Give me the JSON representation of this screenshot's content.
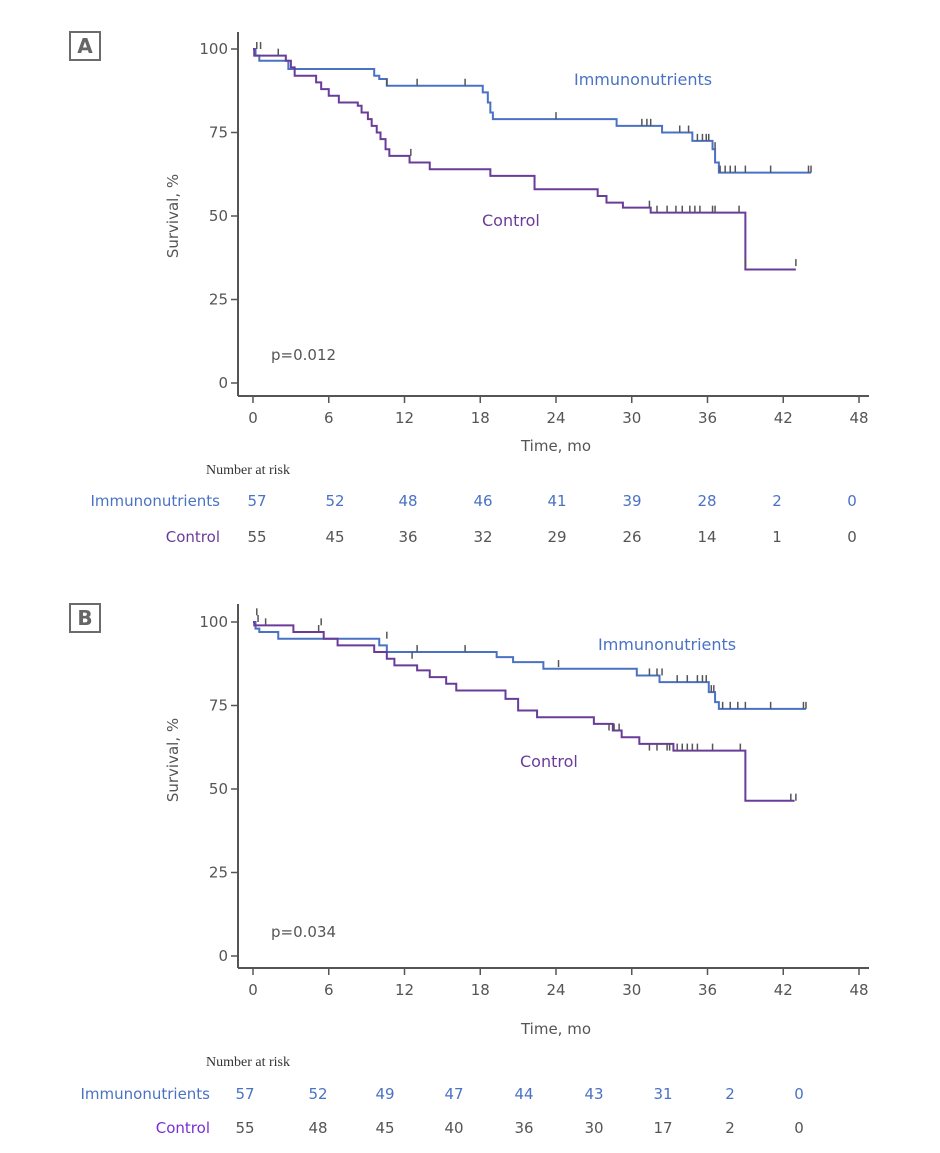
{
  "colors": {
    "immunonutrients": "#4a72c4",
    "control": "#6a3c9a",
    "axis": "#555555",
    "risk_imm_text": "#4a72c4",
    "risk_ctrl_label_a": "#6a3c9a",
    "risk_ctrl_label_b": "#7a2fd0",
    "risk_ctrl_values": "#555555"
  },
  "chart_data": [
    {
      "panel": "A",
      "type": "line",
      "title": "",
      "xlabel": "Time, mo",
      "ylabel": "Survival, %",
      "xlim": [
        0,
        48
      ],
      "ylim": [
        0,
        100
      ],
      "xticks": [
        0,
        6,
        12,
        18,
        24,
        30,
        36,
        42,
        48
      ],
      "yticks": [
        0,
        25,
        50,
        75,
        100
      ],
      "grid": false,
      "annotation": "p=0.012",
      "series": [
        {
          "name": "Immunonutrients",
          "label_position": "upper-right",
          "steps": [
            [
              0,
              100
            ],
            [
              0.2,
              98
            ],
            [
              0.5,
              96.5
            ],
            [
              2.8,
              94
            ],
            [
              9.6,
              92
            ],
            [
              10.0,
              91
            ],
            [
              10.6,
              89
            ],
            [
              18.2,
              87
            ],
            [
              18.6,
              84
            ],
            [
              18.8,
              81
            ],
            [
              19.0,
              79
            ],
            [
              28.8,
              77
            ],
            [
              32.4,
              75
            ],
            [
              34.8,
              72.5
            ],
            [
              36.4,
              70
            ],
            [
              36.6,
              66
            ],
            [
              36.9,
              63
            ],
            [
              44.2,
              63
            ]
          ],
          "censored": [
            [
              0.3,
              100
            ],
            [
              10.6,
              89
            ],
            [
              13.0,
              89
            ],
            [
              16.8,
              89
            ],
            [
              24,
              79
            ],
            [
              30.8,
              77
            ],
            [
              31.2,
              77
            ],
            [
              31.5,
              77
            ],
            [
              33.8,
              75
            ],
            [
              34.5,
              75
            ],
            [
              35.2,
              72.5
            ],
            [
              35.6,
              72.5
            ],
            [
              35.9,
              72.5
            ],
            [
              36.1,
              72.5
            ],
            [
              36.6,
              70
            ],
            [
              37.0,
              63
            ],
            [
              37.4,
              63
            ],
            [
              37.8,
              63
            ],
            [
              38.2,
              63
            ],
            [
              39.0,
              63
            ],
            [
              41.0,
              63
            ],
            [
              44.0,
              63
            ],
            [
              44.2,
              63
            ]
          ]
        },
        {
          "name": "Control",
          "label_position": "center",
          "steps": [
            [
              0,
              100
            ],
            [
              0.1,
              98
            ],
            [
              2.6,
              96.5
            ],
            [
              3.0,
              94.5
            ],
            [
              3.3,
              92
            ],
            [
              5.0,
              90
            ],
            [
              5.4,
              88
            ],
            [
              6.0,
              86
            ],
            [
              6.8,
              84
            ],
            [
              8.3,
              83
            ],
            [
              8.6,
              81
            ],
            [
              9.1,
              79
            ],
            [
              9.4,
              77
            ],
            [
              9.8,
              75
            ],
            [
              10.1,
              73
            ],
            [
              10.5,
              70
            ],
            [
              10.8,
              68
            ],
            [
              12.4,
              66
            ],
            [
              14.0,
              64
            ],
            [
              18.8,
              62
            ],
            [
              22.3,
              58
            ],
            [
              27.3,
              56
            ],
            [
              28.0,
              54
            ],
            [
              29.3,
              52.5
            ],
            [
              31.5,
              51
            ],
            [
              39.0,
              34
            ],
            [
              43.0,
              34
            ]
          ],
          "censored": [
            [
              0.6,
              100
            ],
            [
              2.0,
              98
            ],
            [
              12.5,
              68
            ],
            [
              31.4,
              52.5
            ],
            [
              32.0,
              51
            ],
            [
              32.8,
              51
            ],
            [
              33.5,
              51
            ],
            [
              34.0,
              51
            ],
            [
              34.6,
              51
            ],
            [
              35.0,
              51
            ],
            [
              35.4,
              51
            ],
            [
              36.4,
              51
            ],
            [
              36.6,
              51
            ],
            [
              38.5,
              51
            ],
            [
              39.0,
              35
            ],
            [
              43.0,
              35
            ]
          ]
        }
      ],
      "number_at_risk": {
        "title": "Number at risk",
        "timepoints": [
          0,
          6,
          12,
          18,
          24,
          30,
          36,
          42,
          48
        ],
        "rows": [
          {
            "name": "Immunonutrients",
            "values": [
              57,
              52,
              48,
              46,
              41,
              39,
              28,
              2,
              0
            ]
          },
          {
            "name": "Control",
            "values": [
              55,
              45,
              36,
              32,
              29,
              26,
              14,
              1,
              0
            ]
          }
        ]
      }
    },
    {
      "panel": "B",
      "type": "line",
      "title": "",
      "xlabel": "Time, mo",
      "ylabel": "Survival, %",
      "xlim": [
        0,
        48
      ],
      "ylim": [
        0,
        100
      ],
      "xticks": [
        0,
        6,
        12,
        18,
        24,
        30,
        36,
        42,
        48
      ],
      "yticks": [
        0,
        25,
        50,
        75,
        100
      ],
      "grid": false,
      "annotation": "p=0.034",
      "series": [
        {
          "name": "Immunonutrients",
          "label_position": "upper-right",
          "steps": [
            [
              0,
              100
            ],
            [
              0.2,
              98
            ],
            [
              0.5,
              97
            ],
            [
              2.0,
              95
            ],
            [
              10.0,
              93
            ],
            [
              10.6,
              91
            ],
            [
              19.3,
              89.5
            ],
            [
              20.6,
              88
            ],
            [
              23.0,
              86
            ],
            [
              30.4,
              84
            ],
            [
              32.2,
              82
            ],
            [
              36.1,
              79
            ],
            [
              36.6,
              76
            ],
            [
              36.9,
              74
            ],
            [
              43.8,
              74
            ]
          ],
          "censored": [
            [
              0.3,
              102
            ],
            [
              1.0,
              99
            ],
            [
              5.2,
              97
            ],
            [
              10.6,
              95
            ],
            [
              13.0,
              91
            ],
            [
              16.8,
              91
            ],
            [
              24.2,
              86.5
            ],
            [
              31.4,
              84
            ],
            [
              32.0,
              84
            ],
            [
              32.4,
              84
            ],
            [
              33.6,
              82
            ],
            [
              34.4,
              82
            ],
            [
              35.2,
              82
            ],
            [
              35.6,
              82
            ],
            [
              35.9,
              82
            ],
            [
              36.3,
              79
            ],
            [
              36.5,
              79
            ],
            [
              37.2,
              74
            ],
            [
              37.8,
              74
            ],
            [
              38.4,
              74
            ],
            [
              39.0,
              74
            ],
            [
              41.0,
              74
            ],
            [
              43.6,
              74
            ],
            [
              43.8,
              74
            ]
          ]
        },
        {
          "name": "Control",
          "label_position": "center",
          "steps": [
            [
              0,
              100
            ],
            [
              0.1,
              99
            ],
            [
              3.2,
              97
            ],
            [
              5.6,
              95
            ],
            [
              6.7,
              93
            ],
            [
              9.6,
              91
            ],
            [
              10.6,
              89
            ],
            [
              11.2,
              87
            ],
            [
              13.0,
              85.5
            ],
            [
              14.0,
              83.5
            ],
            [
              15.3,
              81.5
            ],
            [
              16.1,
              79.5
            ],
            [
              20.0,
              77
            ],
            [
              21.0,
              73.5
            ],
            [
              22.5,
              71.5
            ],
            [
              27.0,
              69.5
            ],
            [
              28.5,
              67.5
            ],
            [
              29.2,
              65.5
            ],
            [
              30.6,
              63.5
            ],
            [
              33.3,
              61.5
            ],
            [
              39.0,
              46.5
            ],
            [
              42.9,
              46.5
            ]
          ],
          "censored": [
            [
              0.4,
              100
            ],
            [
              5.4,
              99
            ],
            [
              12.6,
              89
            ],
            [
              28.2,
              67.5
            ],
            [
              28.6,
              67.5
            ],
            [
              29.0,
              67.5
            ],
            [
              31.4,
              61.5
            ],
            [
              32.0,
              61.5
            ],
            [
              32.8,
              61.5
            ],
            [
              33.0,
              61.5
            ],
            [
              33.6,
              61.5
            ],
            [
              34.0,
              61.5
            ],
            [
              34.4,
              61.5
            ],
            [
              34.8,
              61.5
            ],
            [
              35.2,
              61.5
            ],
            [
              36.4,
              61.5
            ],
            [
              38.6,
              61.5
            ],
            [
              42.6,
              46.5
            ],
            [
              43.0,
              46.5
            ]
          ]
        }
      ],
      "number_at_risk": {
        "title": "Number at risk",
        "timepoints": [
          0,
          6,
          12,
          18,
          24,
          30,
          36,
          42,
          48
        ],
        "rows": [
          {
            "name": "Immunonutrients",
            "values": [
              57,
              52,
              49,
              47,
              44,
              43,
              31,
              2,
              0
            ]
          },
          {
            "name": "Control",
            "values": [
              55,
              48,
              45,
              40,
              36,
              30,
              17,
              2,
              0
            ]
          }
        ]
      }
    }
  ]
}
